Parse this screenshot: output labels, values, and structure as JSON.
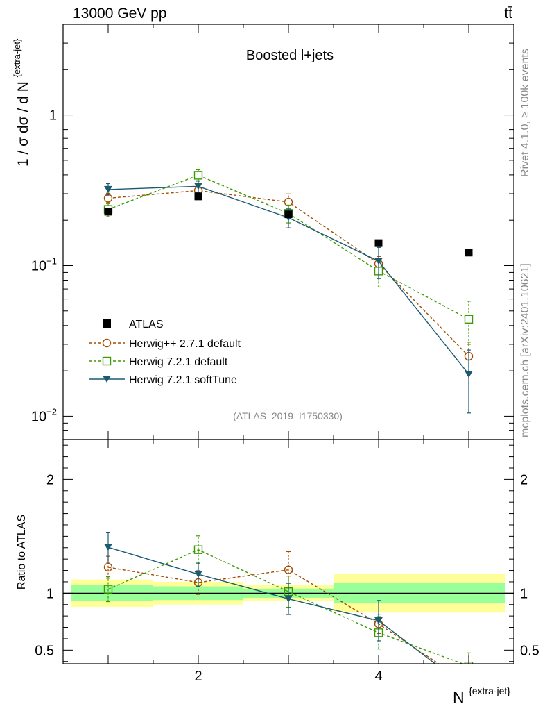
{
  "header": {
    "energy_label": "13000 GeV pp",
    "process_label": "tt̄"
  },
  "side": {
    "rivet_label": "Rivet 4.1.0, ≥ 100k events",
    "source_label": "mcplots.cern.ch [arXiv:2401.10621]"
  },
  "chart_data": {
    "type": "line",
    "title": "Boosted l+jets",
    "analysis_label": "(ATLAS_2019_I1750330)",
    "xlabel_main": "N",
    "xlabel_sup": "{extra-jet}",
    "ylabel": "1 / σ dσ / d N",
    "ylabel_sup": "{extra-jet}",
    "ratio_ylabel": "Ratio to ATLAS",
    "xlim": [
      0.5,
      5.5
    ],
    "ylim": [
      0.007,
      4.0
    ],
    "ylog": true,
    "ratio_ylim": [
      0.38,
      2.35
    ],
    "x_ticks_labeled": [
      {
        "value": 2,
        "label": "2"
      },
      {
        "value": 4,
        "label": "4"
      }
    ],
    "y_ticks_labeled": [
      {
        "value": 0.01,
        "base": "10",
        "exp": "−2"
      },
      {
        "value": 0.1,
        "base": "10",
        "exp": "−1"
      },
      {
        "value": 1,
        "base": "1",
        "exp": ""
      }
    ],
    "ratio_ticks_labeled": [
      {
        "value": 0.5,
        "label": "0.5"
      },
      {
        "value": 1,
        "label": "1"
      },
      {
        "value": 2,
        "label": "2"
      }
    ],
    "bin_edges": [
      0.5,
      1.5,
      2.5,
      3.5,
      4.5,
      5.5
    ],
    "data": {
      "name": "ATLAS",
      "x": [
        1,
        2,
        3,
        4,
        5
      ],
      "y": [
        0.228,
        0.288,
        0.219,
        0.141,
        0.122
      ],
      "band_inner": [
        0.07,
        0.06,
        0.04,
        0.09,
        0.09
      ],
      "band_outer": [
        0.12,
        0.1,
        0.07,
        0.17,
        0.17
      ]
    },
    "series": [
      {
        "name": "Herwig++ 2.7.1 default",
        "color": "#a34c00",
        "marker": "circle",
        "dash": true,
        "x": [
          1,
          2,
          3,
          4,
          5
        ],
        "y": [
          0.28,
          0.315,
          0.264,
          0.103,
          0.025
        ],
        "err_lo": [
          0.022,
          0.03,
          0.035,
          0.012,
          0.006
        ],
        "err_hi": [
          0.022,
          0.03,
          0.035,
          0.012,
          0.006
        ]
      },
      {
        "name": "Herwig 7.2.1 default",
        "color": "#3a9a00",
        "marker": "square",
        "dash": true,
        "x": [
          1,
          2,
          3,
          4,
          5
        ],
        "y": [
          0.236,
          0.398,
          0.222,
          0.092,
          0.044
        ],
        "err_lo": [
          0.025,
          0.035,
          0.03,
          0.02,
          0.014
        ],
        "err_hi": [
          0.025,
          0.035,
          0.03,
          0.02,
          0.014
        ]
      },
      {
        "name": "Herwig 7.2.1 softTune",
        "color": "#1a5a72",
        "marker": "triangle-down",
        "dash": false,
        "x": [
          1,
          2,
          3,
          4,
          5
        ],
        "y": [
          0.32,
          0.336,
          0.208,
          0.107,
          0.019
        ],
        "err_lo": [
          0.03,
          0.03,
          0.03,
          0.025,
          0.0085
        ],
        "err_hi": [
          0.03,
          0.03,
          0.03,
          0.025,
          0.0085
        ]
      }
    ],
    "legend": [
      "ATLAS",
      "Herwig++ 2.7.1 default",
      "Herwig 7.2.1 default",
      "Herwig 7.2.1 softTune"
    ],
    "colors": {
      "band_inner": "#99ff99",
      "band_outer": "#ffff99",
      "data_marker": "#000000"
    }
  }
}
